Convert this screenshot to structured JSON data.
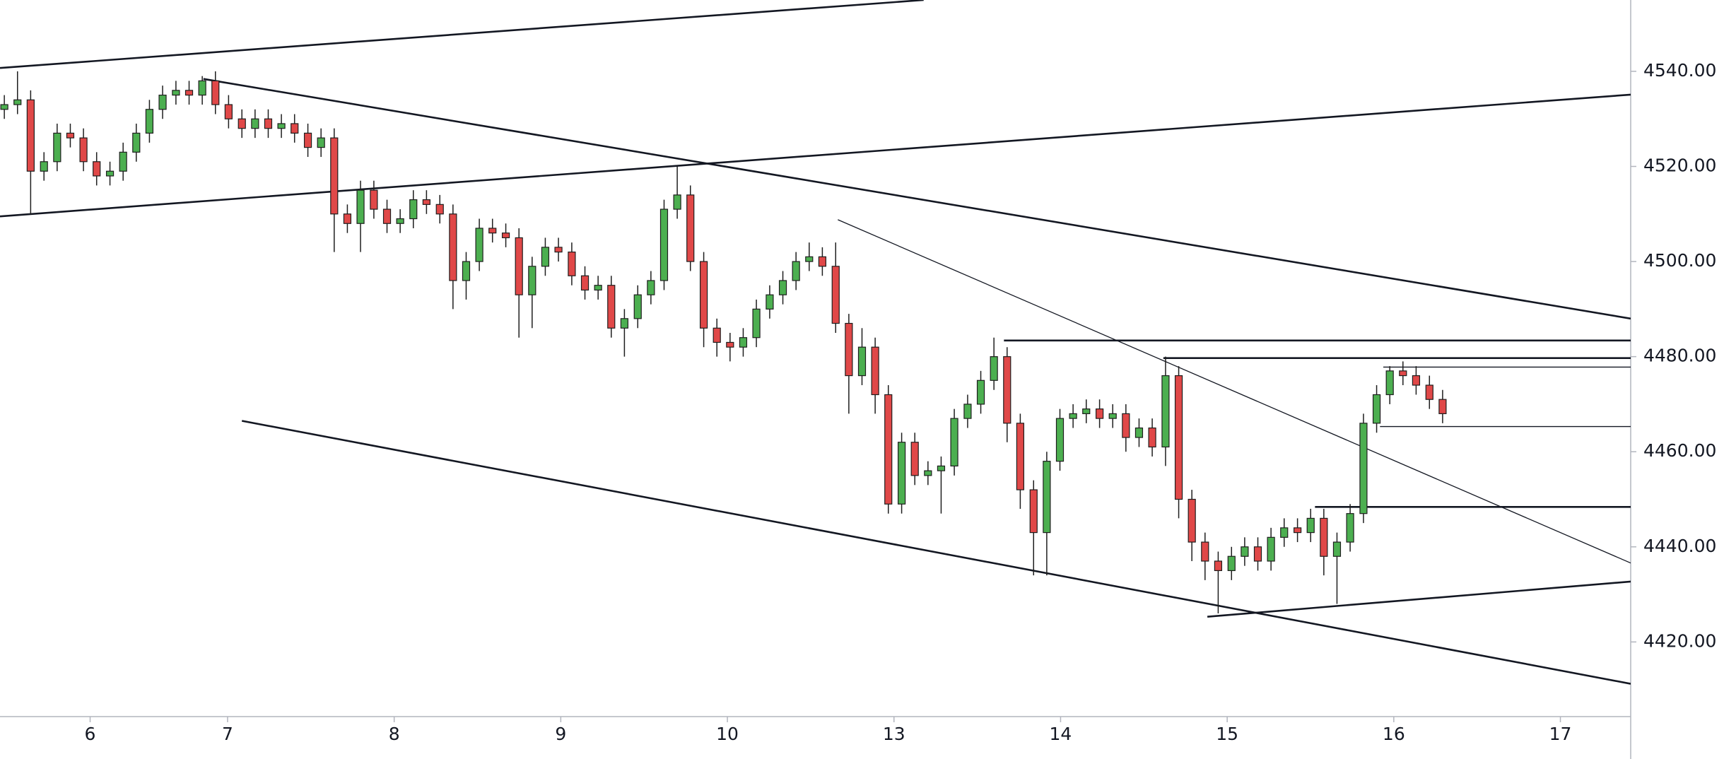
{
  "chart_data": {
    "type": "candlestick",
    "xlim": [
      -0.366,
      9.422
    ],
    "ylim": [
      4404.3,
      4555
    ],
    "xticks": [
      {
        "value": 0.175,
        "label": "6"
      },
      {
        "value": 1,
        "label": "7"
      },
      {
        "value": 2,
        "label": "8"
      },
      {
        "value": 3,
        "label": "9"
      },
      {
        "value": 4,
        "label": "10"
      },
      {
        "value": 5,
        "label": "13"
      },
      {
        "value": 6,
        "label": "14"
      },
      {
        "value": 7,
        "label": "15"
      },
      {
        "value": 8,
        "label": "16"
      },
      {
        "value": 9,
        "label": "17"
      }
    ],
    "yticks": [
      {
        "value": 4420,
        "label": "4420.00"
      },
      {
        "value": 4440,
        "label": "4440.00"
      },
      {
        "value": 4460,
        "label": "4460.00"
      },
      {
        "value": 4480,
        "label": "4480.00"
      },
      {
        "value": 4500,
        "label": "4500.00"
      },
      {
        "value": 4520,
        "label": "4520.00"
      },
      {
        "value": 4540,
        "label": "4540.00"
      }
    ],
    "up_color": "#4caf50",
    "down_color": "#e04848",
    "outline_color": "#1e1e1e",
    "x": [
      -0.34,
      -0.261,
      -0.182,
      -0.102,
      -0.023,
      0.056,
      0.135,
      0.214,
      0.294,
      0.373,
      0.452,
      0.531,
      0.61,
      0.69,
      0.769,
      0.848,
      0.927,
      1.006,
      1.086,
      1.165,
      1.244,
      1.323,
      1.402,
      1.482,
      1.561,
      1.64,
      1.719,
      1.798,
      1.878,
      1.957,
      2.036,
      2.115,
      2.194,
      2.274,
      2.353,
      2.432,
      2.511,
      2.59,
      2.67,
      2.749,
      2.828,
      2.907,
      2.986,
      3.066,
      3.145,
      3.224,
      3.303,
      3.382,
      3.462,
      3.541,
      3.62,
      3.699,
      3.778,
      3.858,
      3.937,
      4.016,
      4.095,
      4.174,
      4.254,
      4.333,
      4.412,
      4.491,
      4.57,
      4.65,
      4.729,
      4.808,
      4.887,
      4.966,
      5.046,
      5.125,
      5.204,
      5.283,
      5.362,
      5.442,
      5.521,
      5.6,
      5.679,
      5.758,
      5.838,
      5.917,
      5.996,
      6.075,
      6.154,
      6.234,
      6.313,
      6.392,
      6.471,
      6.55,
      6.63,
      6.709,
      6.788,
      6.867,
      6.946,
      7.026,
      7.105,
      7.184,
      7.263,
      7.342,
      7.422,
      7.501,
      7.58,
      7.659,
      7.738,
      7.818,
      7.897,
      7.976,
      8.055,
      8.134,
      8.214,
      8.293
    ],
    "open": [
      4532,
      4533,
      4534,
      4519,
      4521,
      4527,
      4526,
      4521,
      4518,
      4519,
      4523,
      4527,
      4532,
      4535,
      4536,
      4535,
      4538,
      4533,
      4530,
      4528,
      4530,
      4528,
      4529,
      4527,
      4524,
      4526,
      4510,
      4508,
      4515,
      4511,
      4508,
      4509,
      4513,
      4512,
      4510,
      4496,
      4500,
      4507,
      4506,
      4505,
      4493,
      4499,
      4503,
      4502,
      4497,
      4494,
      4495,
      4486,
      4488,
      4493,
      4496,
      4511,
      4514,
      4500,
      4486,
      4483,
      4482,
      4484,
      4490,
      4493,
      4496,
      4500,
      4501,
      4499,
      4487,
      4476,
      4482,
      4472,
      4449,
      4462,
      4455,
      4456,
      4457,
      4467,
      4470,
      4475,
      4480,
      4466,
      4452,
      4443,
      4458,
      4467,
      4468,
      4469,
      4467,
      4468,
      4463,
      4465,
      4461,
      4476,
      4450,
      4441,
      4437,
      4435,
      4438,
      4440,
      4437,
      4442,
      4444,
      4443,
      4446,
      4438,
      4441,
      4447,
      4466,
      4472,
      4477,
      4476,
      4474,
      4471
    ],
    "high": [
      4535,
      4540,
      4536,
      4523,
      4529,
      4529,
      4528,
      4523,
      4521,
      4525,
      4529,
      4534,
      4537,
      4538,
      4538,
      4539,
      4540,
      4535,
      4532,
      4532,
      4532,
      4531,
      4531,
      4529,
      4528,
      4528,
      4512,
      4517,
      4517,
      4513,
      4511,
      4515,
      4515,
      4514,
      4512,
      4502,
      4509,
      4509,
      4508,
      4507,
      4501,
      4505,
      4505,
      4504,
      4499,
      4497,
      4497,
      4490,
      4495,
      4498,
      4513,
      4520,
      4516,
      4502,
      4488,
      4485,
      4486,
      4492,
      4495,
      4498,
      4502,
      4504,
      4503,
      4504,
      4489,
      4486,
      4484,
      4474,
      4464,
      4464,
      4458,
      4459,
      4469,
      4472,
      4477,
      4484,
      4482,
      4468,
      4454,
      4460,
      4469,
      4470,
      4471,
      4471,
      4470,
      4470,
      4467,
      4467,
      4480,
      4478,
      4452,
      4443,
      4439,
      4440,
      4442,
      4442,
      4444,
      4446,
      4446,
      4448,
      4448,
      4443,
      4449,
      4468,
      4474,
      4478,
      4479,
      4478,
      4476,
      4473
    ],
    "low": [
      4530,
      4531,
      4510,
      4517,
      4519,
      4524,
      4519,
      4516,
      4516,
      4517,
      4521,
      4525,
      4530,
      4533,
      4533,
      4533,
      4531,
      4528,
      4526,
      4526,
      4526,
      4526,
      4525,
      4522,
      4522,
      4502,
      4506,
      4502,
      4509,
      4506,
      4506,
      4507,
      4510,
      4508,
      4490,
      4492,
      4498,
      4504,
      4503,
      4484,
      4486,
      4497,
      4500,
      4495,
      4492,
      4492,
      4484,
      4480,
      4486,
      4491,
      4494,
      4509,
      4498,
      4482,
      4480,
      4479,
      4480,
      4482,
      4488,
      4491,
      4494,
      4498,
      4497,
      4485,
      4468,
      4474,
      4468,
      4447,
      4447,
      4453,
      4453,
      4447,
      4455,
      4465,
      4468,
      4473,
      4462,
      4448,
      4434,
      4434,
      4456,
      4465,
      4466,
      4465,
      4465,
      4460,
      4461,
      4459,
      4457,
      4446,
      4437,
      4433,
      4426,
      4433,
      4436,
      4435,
      4435,
      4440,
      4441,
      4441,
      4434,
      4428,
      4439,
      4445,
      4464,
      4470,
      4474,
      4472,
      4469,
      4466
    ],
    "close": [
      4533,
      4534,
      4519,
      4521,
      4527,
      4526,
      4521,
      4518,
      4519,
      4523,
      4527,
      4532,
      4535,
      4536,
      4535,
      4538,
      4533,
      4530,
      4528,
      4530,
      4528,
      4529,
      4527,
      4524,
      4526,
      4510,
      4508,
      4515,
      4511,
      4508,
      4509,
      4513,
      4512,
      4510,
      4496,
      4500,
      4507,
      4506,
      4505,
      4493,
      4499,
      4503,
      4502,
      4497,
      4494,
      4495,
      4486,
      4488,
      4493,
      4496,
      4511,
      4514,
      4500,
      4486,
      4483,
      4482,
      4484,
      4490,
      4493,
      4496,
      4500,
      4501,
      4499,
      4487,
      4476,
      4482,
      4472,
      4449,
      4462,
      4455,
      4456,
      4457,
      4467,
      4470,
      4475,
      4480,
      4466,
      4452,
      4443,
      4458,
      4467,
      4468,
      4469,
      4467,
      4468,
      4463,
      4465,
      4461,
      4476,
      4450,
      4441,
      4437,
      4435,
      4438,
      4440,
      4437,
      4442,
      4444,
      4443,
      4446,
      4438,
      4441,
      4447,
      4466,
      4472,
      4477,
      4476,
      4474,
      4471,
      4468
    ],
    "trend_lines": [
      {
        "x": [
          -0.366,
          5.178
        ],
        "y": [
          4540.7,
          4555.0
        ],
        "width": 2
      },
      {
        "x": [
          -0.366,
          9.422
        ],
        "y": [
          4509.5,
          4535.1
        ],
        "width": 2
      },
      {
        "x": [
          0.855,
          9.422
        ],
        "y": [
          4538.4,
          4488.0
        ],
        "width": 2
      },
      {
        "x": [
          4.663,
          9.422
        ],
        "y": [
          4508.8,
          4436.6
        ],
        "width": 1
      },
      {
        "x": [
          1.086,
          9.422
        ],
        "y": [
          4466.5,
          4411.2
        ],
        "width": 2
      },
      {
        "x": [
          6.881,
          9.422
        ],
        "y": [
          4425.3,
          4432.7
        ],
        "width": 2
      },
      {
        "x": [
          5.66,
          9.422
        ],
        "y": [
          4483.4,
          4483.4
        ],
        "width": 2
      },
      {
        "x": [
          6.617,
          9.422
        ],
        "y": [
          4479.7,
          4479.7
        ],
        "width": 2
      },
      {
        "x": [
          7.937,
          9.422
        ],
        "y": [
          4477.8,
          4477.8
        ],
        "width": 1
      },
      {
        "x": [
          7.917,
          9.422
        ],
        "y": [
          4465.3,
          4465.3
        ],
        "width": 1
      },
      {
        "x": [
          7.527,
          9.422
        ],
        "y": [
          4448.4,
          4448.4
        ],
        "width": 2
      }
    ]
  }
}
